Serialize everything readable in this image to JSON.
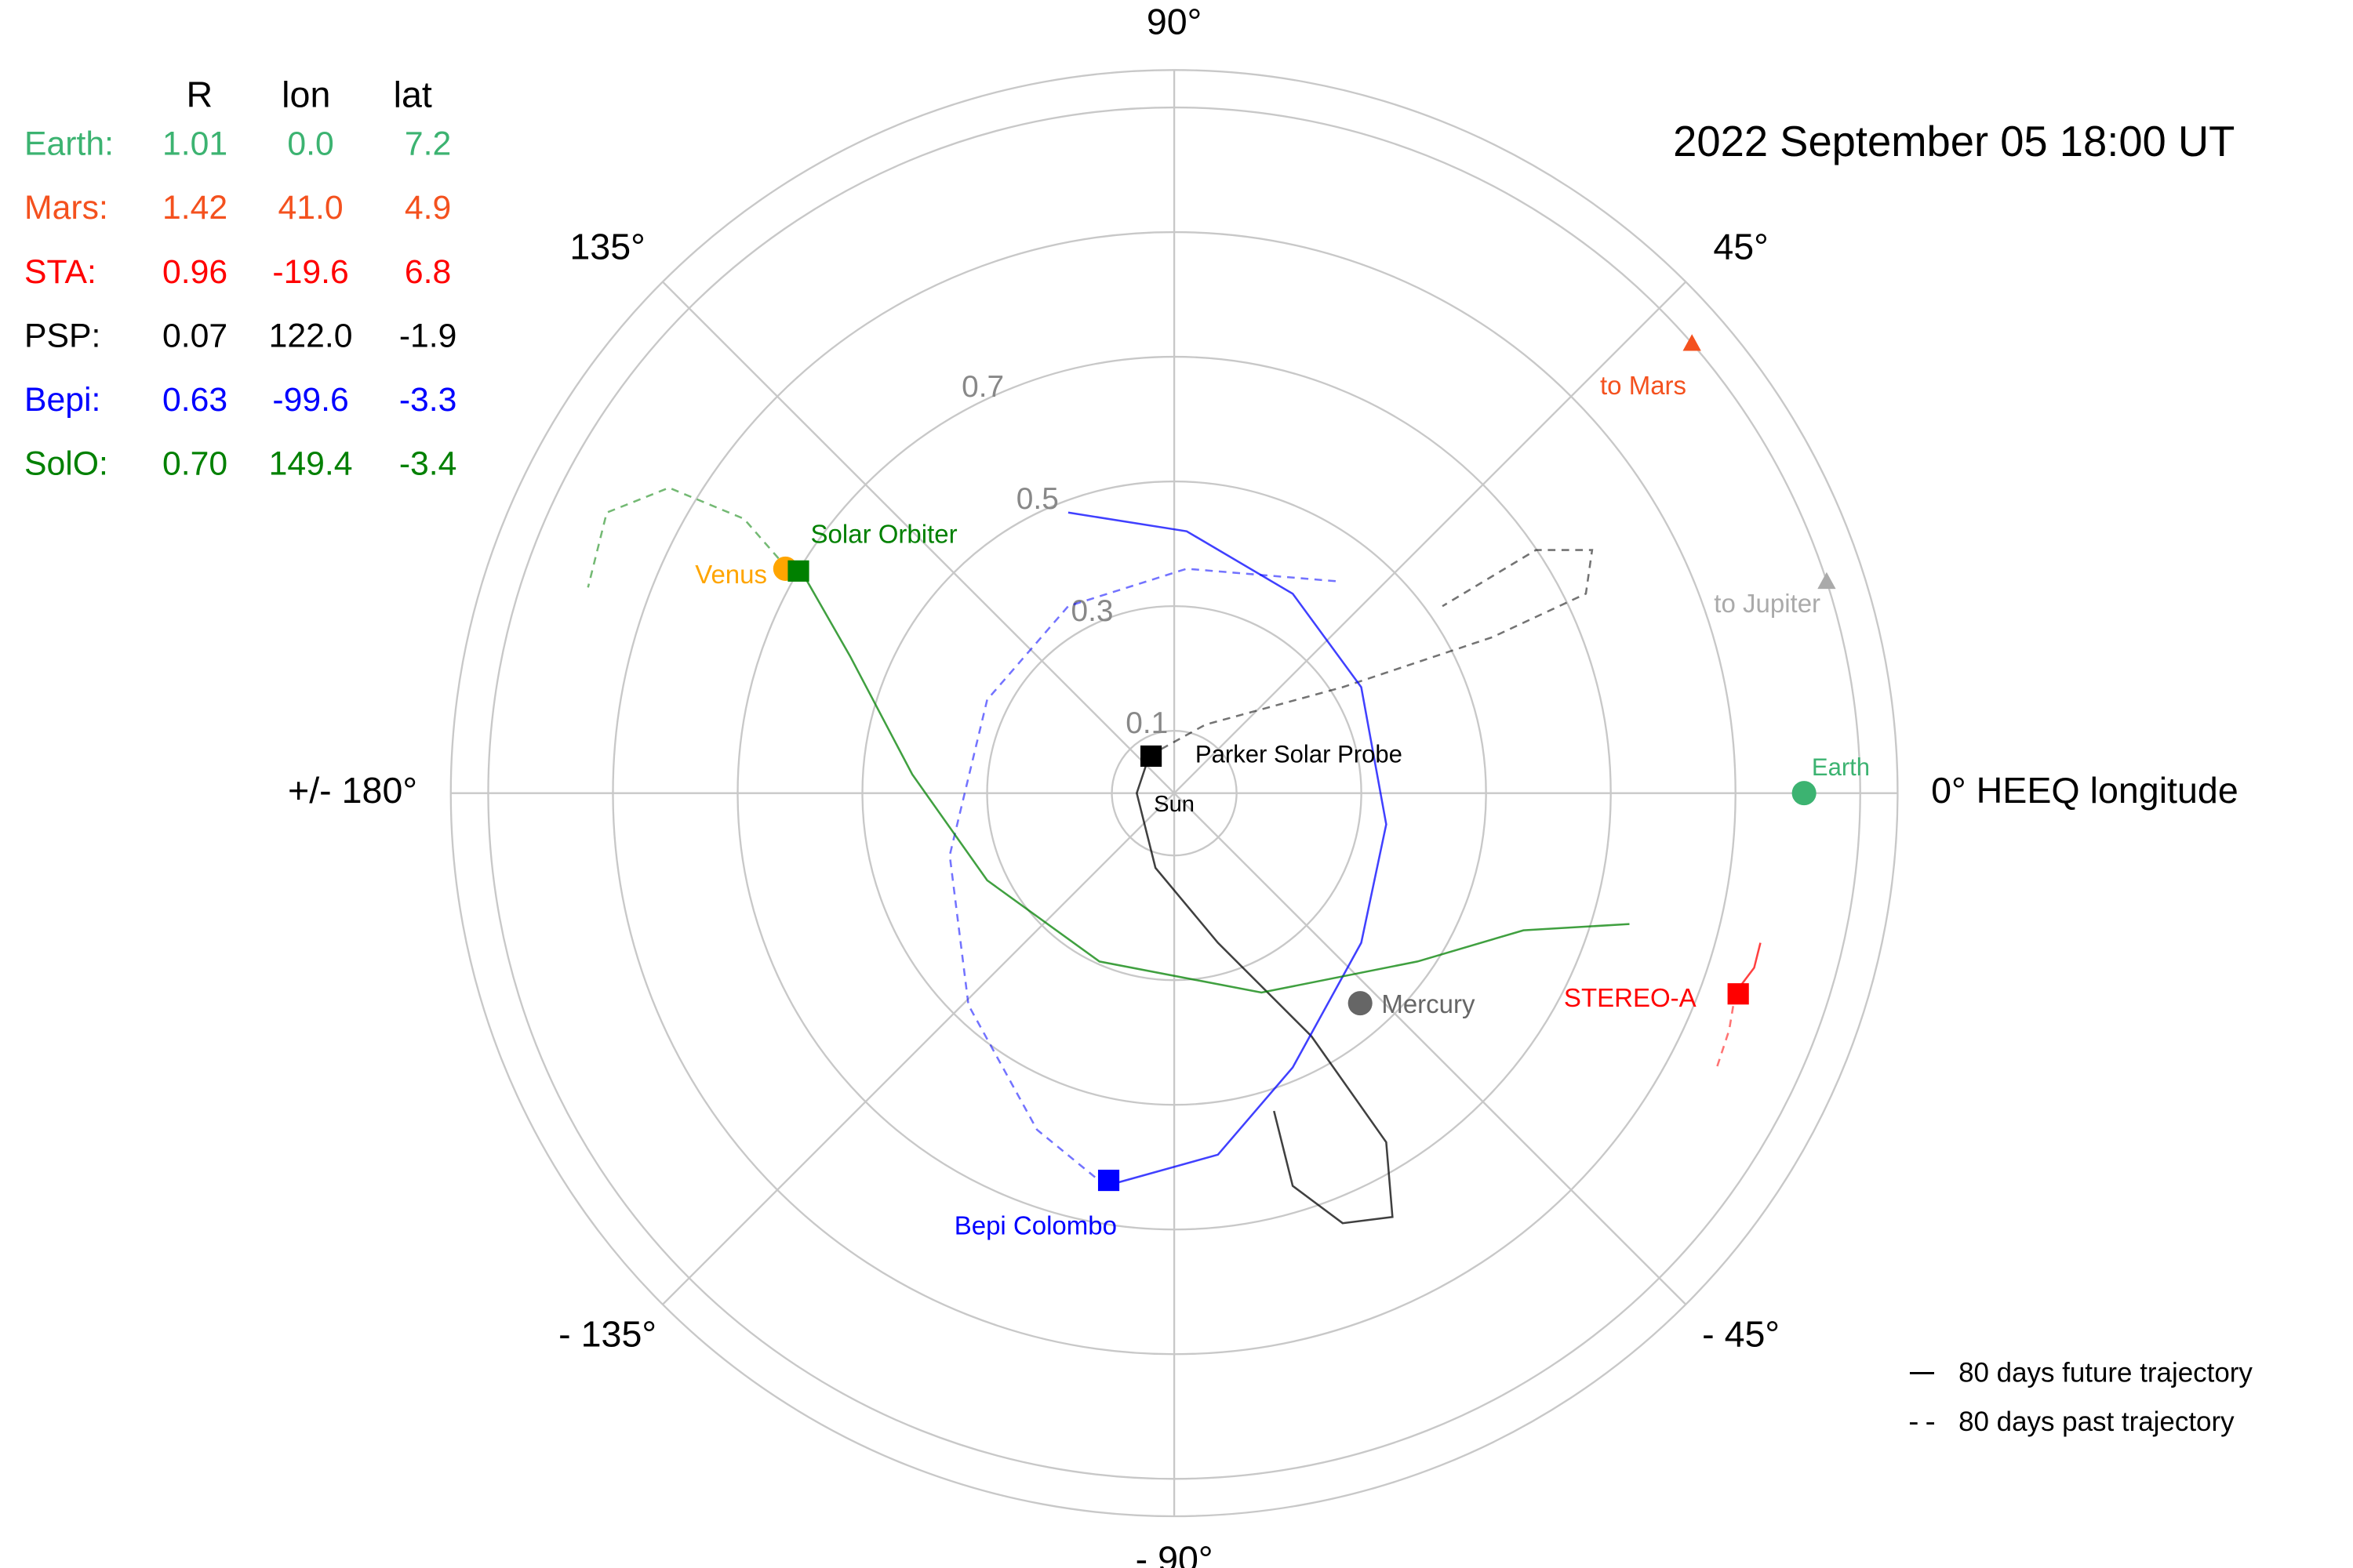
{
  "chart_data": {
    "type": "polar",
    "title": "2022 September 05  18:00 UT",
    "rlim": [
      0,
      1.16
    ],
    "rticks": [
      0.1,
      0.3,
      0.5,
      0.7
    ],
    "rgrid": [
      0.9,
      1.1
    ],
    "thetaticks": [
      {
        "value": 0,
        "label": "0° HEEQ longitude"
      },
      {
        "value": 45,
        "label": "45°"
      },
      {
        "value": 90,
        "label": "90°"
      },
      {
        "value": 135,
        "label": "135°"
      },
      {
        "value": 180,
        "label": "+/- 180°"
      },
      {
        "value": -135,
        "label": "- 135°"
      },
      {
        "value": -90,
        "label": "- 90°"
      },
      {
        "value": -45,
        "label": "- 45°"
      }
    ],
    "sun_label": "Sun",
    "table": {
      "columns": [
        "R",
        "lon",
        "lat"
      ],
      "rows": [
        {
          "name": "Earth:",
          "label": "Earth",
          "marker": "circle",
          "color": "#3cb371",
          "values": [
            1.01,
            0.0,
            7.2
          ],
          "value_labels": [
            "1.01",
            "0.0",
            "7.2"
          ]
        },
        {
          "name": "Mars:",
          "label": "to Mars",
          "marker": "triangle",
          "color": "#f4511e",
          "values": [
            1.42,
            41.0,
            4.9
          ],
          "value_labels": [
            "1.42",
            "41.0",
            "4.9"
          ]
        },
        {
          "name": "STA:",
          "label": "STEREO-A",
          "marker": "square",
          "color": "#ff0000",
          "values": [
            0.96,
            -19.6,
            6.8
          ],
          "value_labels": [
            "0.96",
            "-19.6",
            "6.8"
          ],
          "future": {
            "x": [
              0.9,
              0.93,
              0.94
            ],
            "y": [
              -0.32,
              -0.28,
              -0.24
            ]
          },
          "past": {
            "x": [
              0.9,
              0.89,
              0.87
            ],
            "y": [
              -0.32,
              -0.38,
              -0.44
            ]
          }
        },
        {
          "name": "PSP:",
          "label": "Parker Solar Probe",
          "marker": "square",
          "color": "#000000",
          "values": [
            0.07,
            122.0,
            -1.9
          ],
          "value_labels": [
            "0.07",
            "122.0",
            "-1.9"
          ],
          "future": {
            "x": [
              -0.04,
              -0.06,
              -0.03,
              0.07,
              0.22,
              0.34,
              0.35,
              0.27,
              0.19,
              0.16
            ],
            "y": [
              0.06,
              0.0,
              -0.12,
              -0.24,
              -0.39,
              -0.56,
              -0.68,
              -0.69,
              -0.63,
              -0.51
            ]
          },
          "past": {
            "x": [
              -0.04,
              0.05,
              0.27,
              0.51,
              0.66,
              0.67,
              0.58,
              0.43
            ],
            "y": [
              0.06,
              0.11,
              0.17,
              0.25,
              0.32,
              0.39,
              0.39,
              0.3
            ]
          }
        },
        {
          "name": "Bepi:",
          "label": "Bepi Colombo",
          "marker": "square",
          "color": "#0000ff",
          "values": [
            0.63,
            -99.6,
            -3.3
          ],
          "value_labels": [
            "0.63",
            "-99.6",
            "-3.3"
          ],
          "future": {
            "x": [
              -0.11,
              0.07,
              0.19,
              0.3,
              0.34,
              0.3,
              0.19,
              0.02,
              -0.17
            ],
            "y": [
              -0.63,
              -0.58,
              -0.44,
              -0.24,
              -0.05,
              0.17,
              0.32,
              0.42,
              0.45
            ]
          },
          "past": {
            "x": [
              -0.11,
              -0.22,
              -0.33,
              -0.36,
              -0.3,
              -0.17,
              0.02,
              0.26
            ],
            "y": [
              -0.63,
              -0.54,
              -0.34,
              -0.1,
              0.15,
              0.3,
              0.36,
              0.34
            ]
          }
        },
        {
          "name": "SolO:",
          "label": "Solar Orbiter",
          "marker": "square",
          "color": "#008000",
          "values": [
            0.7,
            149.4,
            -3.4
          ],
          "value_labels": [
            "0.70",
            "149.4",
            "-3.4"
          ],
          "future": {
            "x": [
              -0.6,
              -0.52,
              -0.42,
              -0.3,
              -0.12,
              0.14,
              0.39,
              0.56,
              0.73
            ],
            "y": [
              0.36,
              0.22,
              0.03,
              -0.14,
              -0.27,
              -0.32,
              -0.27,
              -0.22,
              -0.21
            ]
          },
          "past": {
            "x": [
              -0.62,
              -0.69,
              -0.81,
              -0.91,
              -0.94
            ],
            "y": [
              0.36,
              0.44,
              0.49,
              0.45,
              0.33
            ]
          }
        }
      ]
    },
    "planets": [
      {
        "label": "Venus",
        "color": "#ffa500",
        "r": 0.72,
        "lon": 150
      },
      {
        "label": "Mercury",
        "color": "#666666",
        "r": 0.45,
        "lon": -48.5
      }
    ],
    "directions": [
      {
        "label": "to Jupiter",
        "color": "#aaaaaa",
        "lon": 18
      }
    ],
    "legend": {
      "future": "80 days future trajectory",
      "past": "80 days past trajectory"
    }
  }
}
